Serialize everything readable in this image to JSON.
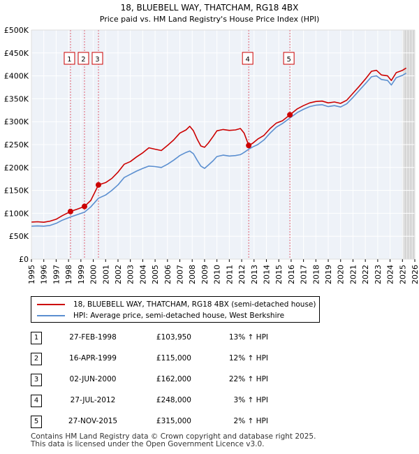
{
  "chart_data": {
    "type": "line",
    "title": "18, BLUEBELL WAY, THATCHAM, RG18 4BX",
    "subtitle": "Price paid vs. HM Land Registry's House Price Index (HPI)",
    "xlim": [
      1995,
      2026
    ],
    "ylim": [
      0,
      500000
    ],
    "x_ticks": [
      "1995",
      "1996",
      "1997",
      "1998",
      "1999",
      "2000",
      "2001",
      "2002",
      "2003",
      "2004",
      "2005",
      "2006",
      "2007",
      "2008",
      "2009",
      "2010",
      "2011",
      "2012",
      "2013",
      "2014",
      "2015",
      "2016",
      "2017",
      "2018",
      "2019",
      "2020",
      "2021",
      "2022",
      "2023",
      "2024",
      "2025",
      "2026"
    ],
    "y_ticks": [
      {
        "value": 0,
        "label": "£0"
      },
      {
        "value": 50000,
        "label": "£50K"
      },
      {
        "value": 100000,
        "label": "£100K"
      },
      {
        "value": 150000,
        "label": "£150K"
      },
      {
        "value": 200000,
        "label": "£200K"
      },
      {
        "value": 250000,
        "label": "£250K"
      },
      {
        "value": 300000,
        "label": "£300K"
      },
      {
        "value": 350000,
        "label": "£350K"
      },
      {
        "value": 400000,
        "label": "£400K"
      },
      {
        "value": 450000,
        "label": "£450K"
      },
      {
        "value": 500000,
        "label": "£500K"
      }
    ],
    "series": [
      {
        "name": "18, BLUEBELL WAY, THATCHAM, RG18 4BX (semi-detached house)",
        "color": "#cc0000",
        "points": [
          [
            1995.0,
            81000
          ],
          [
            1995.5,
            81500
          ],
          [
            1996.0,
            80500
          ],
          [
            1996.5,
            83000
          ],
          [
            1997.0,
            87000
          ],
          [
            1997.5,
            95000
          ],
          [
            1998.16,
            103950
          ],
          [
            1998.7,
            109000
          ],
          [
            1999.29,
            115000
          ],
          [
            1999.8,
            128000
          ],
          [
            2000.42,
            162000
          ],
          [
            2001.0,
            167000
          ],
          [
            2001.5,
            176000
          ],
          [
            2002.0,
            190000
          ],
          [
            2002.5,
            207000
          ],
          [
            2003.0,
            213000
          ],
          [
            2003.5,
            223000
          ],
          [
            2004.0,
            232000
          ],
          [
            2004.5,
            243000
          ],
          [
            2005.0,
            240000
          ],
          [
            2005.5,
            237000
          ],
          [
            2006.0,
            248000
          ],
          [
            2006.5,
            260000
          ],
          [
            2007.0,
            275000
          ],
          [
            2007.5,
            282000
          ],
          [
            2007.8,
            290000
          ],
          [
            2008.1,
            280000
          ],
          [
            2008.4,
            262000
          ],
          [
            2008.7,
            247000
          ],
          [
            2009.0,
            244000
          ],
          [
            2009.3,
            253000
          ],
          [
            2009.7,
            268000
          ],
          [
            2010.0,
            280000
          ],
          [
            2010.5,
            283000
          ],
          [
            2011.0,
            281000
          ],
          [
            2011.5,
            282000
          ],
          [
            2011.9,
            285000
          ],
          [
            2012.2,
            275000
          ],
          [
            2012.57,
            248000
          ],
          [
            2012.9,
            253000
          ],
          [
            2013.3,
            262000
          ],
          [
            2013.8,
            270000
          ],
          [
            2014.3,
            285000
          ],
          [
            2014.8,
            297000
          ],
          [
            2015.3,
            302000
          ],
          [
            2015.9,
            315000
          ],
          [
            2016.5,
            328000
          ],
          [
            2017.0,
            335000
          ],
          [
            2017.5,
            341000
          ],
          [
            2018.0,
            344000
          ],
          [
            2018.5,
            345000
          ],
          [
            2019.0,
            341000
          ],
          [
            2019.5,
            343000
          ],
          [
            2020.0,
            340000
          ],
          [
            2020.5,
            347000
          ],
          [
            2021.0,
            362000
          ],
          [
            2021.5,
            377000
          ],
          [
            2022.0,
            393000
          ],
          [
            2022.5,
            410000
          ],
          [
            2022.9,
            412000
          ],
          [
            2023.3,
            402000
          ],
          [
            2023.8,
            400000
          ],
          [
            2024.1,
            390000
          ],
          [
            2024.5,
            407000
          ],
          [
            2025.0,
            412000
          ],
          [
            2025.3,
            417000
          ]
        ]
      },
      {
        "name": "HPI: Average price, semi-detached house, West Berkshire",
        "color": "#5b8fd0",
        "points": [
          [
            1995.0,
            72000
          ],
          [
            1995.5,
            72500
          ],
          [
            1996.0,
            72000
          ],
          [
            1996.5,
            73500
          ],
          [
            1997.0,
            78000
          ],
          [
            1997.5,
            85000
          ],
          [
            1998.16,
            92000
          ],
          [
            1998.7,
            97000
          ],
          [
            1999.29,
            102500
          ],
          [
            1999.8,
            114000
          ],
          [
            2000.42,
            133000
          ],
          [
            2001.0,
            140000
          ],
          [
            2001.5,
            150000
          ],
          [
            2002.0,
            162000
          ],
          [
            2002.5,
            178000
          ],
          [
            2003.0,
            185000
          ],
          [
            2003.5,
            192000
          ],
          [
            2004.0,
            198000
          ],
          [
            2004.5,
            203000
          ],
          [
            2005.0,
            202000
          ],
          [
            2005.5,
            200000
          ],
          [
            2006.0,
            207000
          ],
          [
            2006.5,
            216000
          ],
          [
            2007.0,
            226000
          ],
          [
            2007.5,
            233000
          ],
          [
            2007.8,
            236000
          ],
          [
            2008.1,
            230000
          ],
          [
            2008.4,
            216000
          ],
          [
            2008.7,
            203000
          ],
          [
            2009.0,
            198000
          ],
          [
            2009.3,
            205000
          ],
          [
            2009.7,
            215000
          ],
          [
            2010.0,
            224000
          ],
          [
            2010.5,
            227000
          ],
          [
            2011.0,
            225000
          ],
          [
            2011.5,
            226000
          ],
          [
            2011.9,
            228000
          ],
          [
            2012.2,
            233000
          ],
          [
            2012.57,
            240000
          ],
          [
            2012.9,
            245000
          ],
          [
            2013.3,
            250000
          ],
          [
            2013.8,
            260000
          ],
          [
            2014.3,
            275000
          ],
          [
            2014.8,
            288000
          ],
          [
            2015.3,
            296000
          ],
          [
            2015.9,
            308000
          ],
          [
            2016.5,
            320000
          ],
          [
            2017.0,
            327000
          ],
          [
            2017.5,
            333000
          ],
          [
            2018.0,
            336000
          ],
          [
            2018.5,
            337000
          ],
          [
            2019.0,
            333000
          ],
          [
            2019.5,
            335000
          ],
          [
            2020.0,
            332000
          ],
          [
            2020.5,
            339000
          ],
          [
            2021.0,
            353000
          ],
          [
            2021.5,
            368000
          ],
          [
            2022.0,
            383000
          ],
          [
            2022.5,
            398000
          ],
          [
            2022.9,
            400000
          ],
          [
            2023.3,
            392000
          ],
          [
            2023.8,
            390000
          ],
          [
            2024.1,
            380000
          ],
          [
            2024.5,
            396000
          ],
          [
            2025.0,
            401000
          ],
          [
            2025.3,
            406000
          ]
        ]
      }
    ],
    "sales": [
      {
        "label": "1",
        "x": 1998.16,
        "value": 103950
      },
      {
        "label": "2",
        "x": 1999.29,
        "value": 115000
      },
      {
        "label": "3",
        "x": 2000.42,
        "value": 162000
      },
      {
        "label": "4",
        "x": 2012.57,
        "value": 248000
      },
      {
        "label": "5",
        "x": 2015.9,
        "value": 315000
      }
    ],
    "future_start": 2025.0
  },
  "legend": {
    "property": "18, BLUEBELL WAY, THATCHAM, RG18 4BX (semi-detached house)",
    "hpi": "HPI: Average price, semi-detached house, West Berkshire"
  },
  "transactions": [
    {
      "num": "1",
      "date": "27-FEB-1998",
      "price": "£103,950",
      "hpi": "13% ↑ HPI"
    },
    {
      "num": "2",
      "date": "16-APR-1999",
      "price": "£115,000",
      "hpi": "12% ↑ HPI"
    },
    {
      "num": "3",
      "date": "02-JUN-2000",
      "price": "£162,000",
      "hpi": "22% ↑ HPI"
    },
    {
      "num": "4",
      "date": "27-JUL-2012",
      "price": "£248,000",
      "hpi": "3% ↑ HPI"
    },
    {
      "num": "5",
      "date": "27-NOV-2015",
      "price": "£315,000",
      "hpi": "2% ↑ HPI"
    }
  ],
  "footer": {
    "line1": "Contains HM Land Registry data © Crown copyright and database right 2025.",
    "line2": "This data is licensed under the Open Government Licence v3.0."
  }
}
